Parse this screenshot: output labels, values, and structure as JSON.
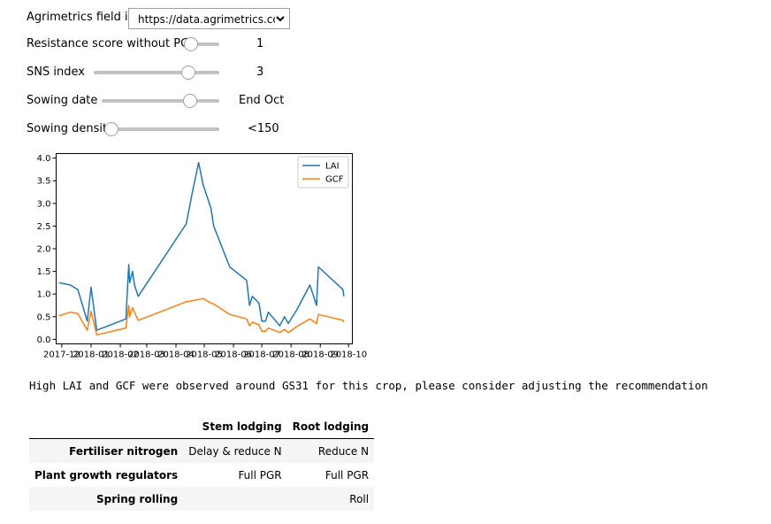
{
  "controls": {
    "field_id": {
      "label": "Agrimetrics field id",
      "value": "https://data.agrimetrics.co"
    },
    "resistance": {
      "label": "Resistance score without PGR",
      "readout": "1",
      "level": 0.0
    },
    "sns": {
      "label": "SNS index",
      "readout": "3",
      "level": 0.75
    },
    "sowing_date": {
      "label": "Sowing date",
      "readout": "End Oct",
      "level": 0.75
    },
    "sowing_density": {
      "label": "Sowing density",
      "readout": "<150",
      "level": 0.0
    }
  },
  "chart_data": {
    "type": "line",
    "xlabel": "",
    "ylabel": "",
    "x_ticks": [
      "2017-12",
      "2018-01",
      "2018-02",
      "2018-03",
      "2018-04",
      "2018-05",
      "2018-06",
      "2018-07",
      "2018-08",
      "2018-09",
      "2018-10"
    ],
    "xlim": [
      "2017-11-25",
      "2018-10-05"
    ],
    "ylim": [
      -0.1,
      4.1
    ],
    "y_ticks": [
      "0.0",
      "0.5",
      "1.0",
      "1.5",
      "2.0",
      "2.5",
      "3.0",
      "3.5",
      "4.0"
    ],
    "legend": "top-right",
    "grid": false,
    "series": [
      {
        "name": "LAI",
        "color": "#1f77b4",
        "points": [
          [
            "2017-11-28",
            1.25
          ],
          [
            "2017-12-10",
            1.2
          ],
          [
            "2017-12-18",
            1.1
          ],
          [
            "2017-12-28",
            0.4
          ],
          [
            "2018-01-01",
            1.15
          ],
          [
            "2018-01-07",
            0.2
          ],
          [
            "2018-02-07",
            0.45
          ],
          [
            "2018-02-10",
            1.65
          ],
          [
            "2018-02-11",
            1.25
          ],
          [
            "2018-02-14",
            1.5
          ],
          [
            "2018-02-16",
            1.2
          ],
          [
            "2018-02-20",
            0.95
          ],
          [
            "2018-04-12",
            2.55
          ],
          [
            "2018-04-18",
            3.2
          ],
          [
            "2018-04-25",
            3.9
          ],
          [
            "2018-04-30",
            3.4
          ],
          [
            "2018-05-08",
            2.9
          ],
          [
            "2018-05-11",
            2.5
          ],
          [
            "2018-05-28",
            1.6
          ],
          [
            "2018-06-15",
            1.3
          ],
          [
            "2018-06-18",
            0.75
          ],
          [
            "2018-06-21",
            0.95
          ],
          [
            "2018-06-28",
            0.8
          ],
          [
            "2018-07-01",
            0.4
          ],
          [
            "2018-07-05",
            0.4
          ],
          [
            "2018-07-08",
            0.6
          ],
          [
            "2018-07-20",
            0.3
          ],
          [
            "2018-07-25",
            0.5
          ],
          [
            "2018-07-29",
            0.35
          ],
          [
            "2018-08-07",
            0.65
          ],
          [
            "2018-08-21",
            1.2
          ],
          [
            "2018-08-28",
            0.75
          ],
          [
            "2018-08-30",
            1.6
          ],
          [
            "2018-09-25",
            1.1
          ],
          [
            "2018-09-26",
            0.95
          ]
        ]
      },
      {
        "name": "GCF",
        "color": "#ff7f0e",
        "points": [
          [
            "2017-11-28",
            0.52
          ],
          [
            "2017-12-10",
            0.6
          ],
          [
            "2017-12-18",
            0.57
          ],
          [
            "2017-12-28",
            0.2
          ],
          [
            "2018-01-01",
            0.62
          ],
          [
            "2018-01-07",
            0.1
          ],
          [
            "2018-02-07",
            0.25
          ],
          [
            "2018-02-10",
            0.75
          ],
          [
            "2018-02-11",
            0.5
          ],
          [
            "2018-02-14",
            0.7
          ],
          [
            "2018-02-16",
            0.6
          ],
          [
            "2018-02-20",
            0.42
          ],
          [
            "2018-04-12",
            0.83
          ],
          [
            "2018-04-18",
            0.85
          ],
          [
            "2018-04-25",
            0.88
          ],
          [
            "2018-04-30",
            0.9
          ],
          [
            "2018-05-08",
            0.8
          ],
          [
            "2018-05-11",
            0.78
          ],
          [
            "2018-05-28",
            0.55
          ],
          [
            "2018-06-15",
            0.45
          ],
          [
            "2018-06-18",
            0.3
          ],
          [
            "2018-06-21",
            0.38
          ],
          [
            "2018-06-28",
            0.32
          ],
          [
            "2018-07-01",
            0.18
          ],
          [
            "2018-07-05",
            0.18
          ],
          [
            "2018-07-08",
            0.25
          ],
          [
            "2018-07-20",
            0.15
          ],
          [
            "2018-07-25",
            0.22
          ],
          [
            "2018-07-29",
            0.15
          ],
          [
            "2018-08-07",
            0.28
          ],
          [
            "2018-08-21",
            0.45
          ],
          [
            "2018-08-28",
            0.35
          ],
          [
            "2018-08-30",
            0.55
          ],
          [
            "2018-09-25",
            0.42
          ],
          [
            "2018-09-26",
            0.38
          ]
        ]
      }
    ]
  },
  "message": "High LAI and GCF were observed around GS31 for this crop, please consider adjusting the recommendation",
  "table": {
    "columns": [
      "",
      "Stem lodging",
      "Root lodging"
    ],
    "rows": [
      {
        "label": "Fertiliser nitrogen",
        "cells": [
          "Delay & reduce N",
          "Reduce N"
        ]
      },
      {
        "label": "Plant growth regulators",
        "cells": [
          "Full PGR",
          "Full PGR"
        ]
      },
      {
        "label": "Spring rolling",
        "cells": [
          "",
          "Roll"
        ]
      }
    ]
  }
}
